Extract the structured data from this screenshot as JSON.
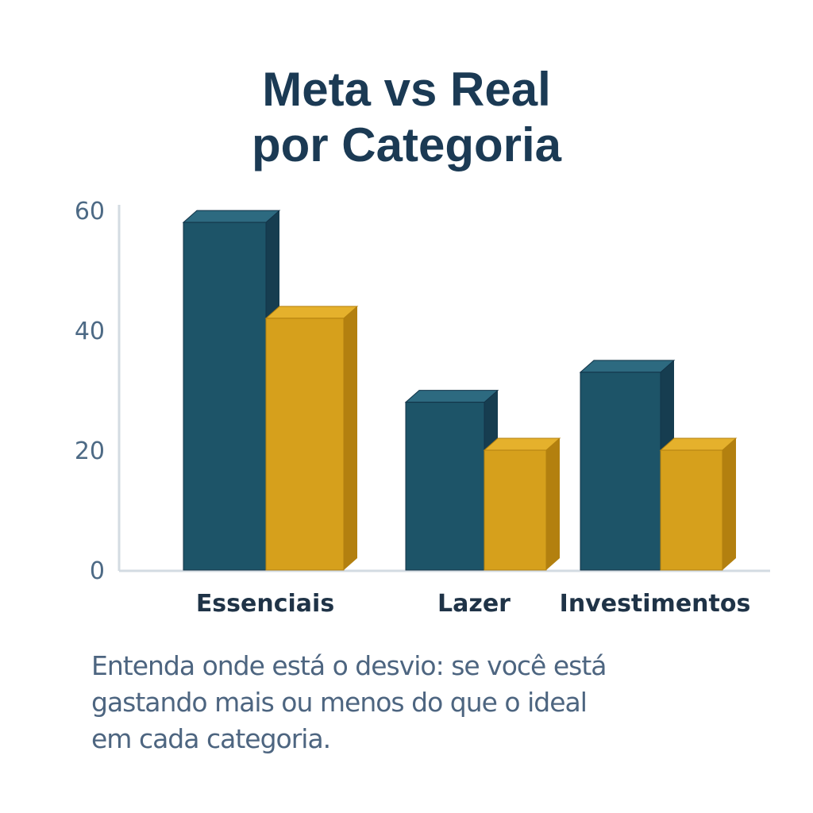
{
  "title_line1": "Meta vs Real",
  "title_line2": "por Categoria",
  "caption": "Entenda onde está o desvio: se você está gastando mais ou menos do que o ideal em cada categoria.",
  "caption_lines": [
    "Entenda onde está o desvio: se você está",
    "gastando mais ou menos do que o ideal",
    "em cada categoria."
  ],
  "colors": {
    "meta": "#1d5468",
    "real": "#d4a01c",
    "axis": "#d3dbe2"
  },
  "chart_data": {
    "type": "bar",
    "title": "Meta vs Real por Categoria",
    "xlabel": "",
    "ylabel": "",
    "categories": [
      "Essenciais",
      "Lazer",
      "Investimentos"
    ],
    "series": [
      {
        "name": "Meta",
        "values": [
          58,
          28,
          33
        ]
      },
      {
        "name": "Real",
        "values": [
          42,
          20,
          20
        ]
      }
    ],
    "yticks": [
      0,
      20,
      40,
      60
    ],
    "ylim": [
      0,
      60
    ],
    "grid": false,
    "legend": "none",
    "style": "3d"
  }
}
